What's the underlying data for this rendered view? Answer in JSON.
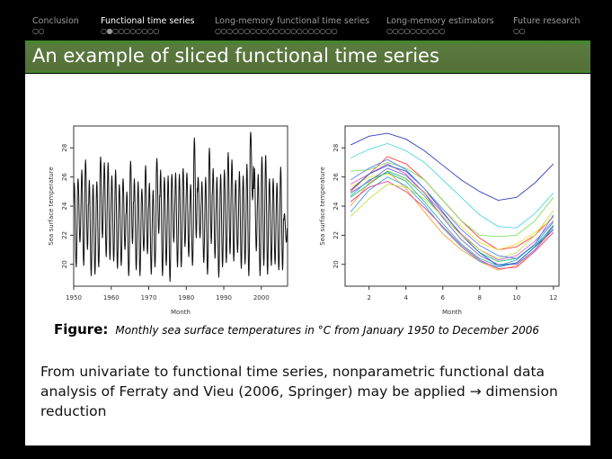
{
  "nav": {
    "sections": [
      {
        "label": "Conclusion",
        "dots": "○○",
        "active": false
      },
      {
        "label": "Functional time series",
        "dots": "○●○○○○○○○○",
        "active": true
      },
      {
        "label": "Long-memory functional time series",
        "dots": "○○○○○○○○○○○○○○○○○○○○○",
        "active": false
      },
      {
        "label": "Long-memory estimators",
        "dots": "○○○○○○○○○○",
        "active": false
      },
      {
        "label": "Future research",
        "dots": "○○",
        "active": false
      }
    ]
  },
  "title": "An example of sliced functional time series",
  "caption": {
    "label": "Figure:",
    "text": "Monthly sea surface temperatures in °C from January 1950 to December 2006"
  },
  "body": "From univariate to functional time series, nonparametric functional data analysis of Ferraty and Vieu (2006, Springer) may be applied → dimension reduction",
  "chart_data": [
    {
      "type": "line",
      "xlabel": "Month",
      "ylabel": "Sea surface temperature",
      "xlim": [
        1950,
        2007
      ],
      "ylim": [
        18.5,
        29.5
      ],
      "xticks": [
        "1950",
        "1960",
        "1970",
        "1980",
        "1990",
        "2000"
      ],
      "yticks": [
        "20",
        "22",
        "24",
        "26",
        "28"
      ],
      "years_from": 1950,
      "annual_peaks": [
        25.6,
        25.9,
        26.5,
        27.2,
        25.8,
        25.5,
        25.7,
        27.4,
        27.0,
        27.0,
        26.1,
        26.5,
        25.5,
        25.9,
        25.0,
        27.1,
        25.9,
        25.7,
        25.2,
        26.8,
        25.6,
        25.1,
        27.3,
        26.5,
        26.0,
        26.1,
        26.2,
        26.3,
        26.2,
        26.6,
        26.3,
        25.5,
        28.7,
        26.0,
        25.7,
        26.0,
        28.0,
        26.6,
        26.0,
        26.2,
        26.5,
        27.7,
        27.2,
        25.8,
        26.4,
        26.1,
        26.9,
        29.1,
        26.6,
        26.2,
        27.4,
        27.5,
        25.9,
        25.9,
        25.6,
        26.7,
        23.5
      ],
      "annual_troughs": [
        19.8,
        21.5,
        19.9,
        21.0,
        19.2,
        19.3,
        19.8,
        21.8,
        20.5,
        20.3,
        20.2,
        19.7,
        19.9,
        21.0,
        19.2,
        21.4,
        19.6,
        19.2,
        20.9,
        20.7,
        19.3,
        19.8,
        22.1,
        19.2,
        19.9,
        18.8,
        21.5,
        19.8,
        19.8,
        21.2,
        20.5,
        19.9,
        21.8,
        21.8,
        20.1,
        19.3,
        21.4,
        20.4,
        19.1,
        19.8,
        20.1,
        20.7,
        20.2,
        20.8,
        19.7,
        20.0,
        19.2,
        24.4,
        20.9,
        19.2,
        19.9,
        19.3,
        19.9,
        20.0,
        19.6,
        19.6,
        21.5
      ]
    },
    {
      "type": "line",
      "xlabel": "Month",
      "ylabel": "Sea surface temperature",
      "xlim": [
        0.7,
        12.3
      ],
      "ylim": [
        18.5,
        29.5
      ],
      "xticks": [
        "2",
        "4",
        "6",
        "8",
        "10",
        "12"
      ],
      "yticks": [
        "20",
        "22",
        "24",
        "26",
        "28"
      ],
      "months": [
        1,
        2,
        3,
        4,
        5,
        6,
        7,
        8,
        9,
        10,
        11,
        12
      ],
      "series": [
        {
          "color": "#3040c0",
          "values": [
            28.2,
            28.8,
            29.0,
            28.6,
            27.8,
            26.8,
            25.8,
            25.0,
            24.4,
            24.6,
            25.6,
            26.9
          ]
        },
        {
          "color": "#50d8e0",
          "values": [
            27.3,
            27.9,
            28.3,
            27.8,
            27.0,
            25.8,
            24.6,
            23.4,
            22.6,
            22.5,
            23.5,
            24.9
          ]
        },
        {
          "color": "#ff4040",
          "values": [
            25.0,
            26.2,
            27.4,
            26.9,
            25.8,
            24.4,
            23.0,
            21.8,
            21.0,
            21.2,
            22.0,
            23.3
          ]
        },
        {
          "color": "#ffa030",
          "values": [
            24.0,
            25.6,
            26.4,
            25.2,
            23.6,
            22.1,
            21.0,
            20.2,
            19.6,
            19.9,
            21.0,
            22.4
          ]
        },
        {
          "color": "#f0e040",
          "values": [
            25.3,
            26.0,
            26.2,
            25.8,
            25.0,
            23.8,
            22.6,
            21.5,
            21.0,
            21.4,
            22.2,
            23.2
          ]
        },
        {
          "color": "#80e060",
          "values": [
            26.4,
            26.5,
            27.0,
            26.6,
            25.8,
            24.4,
            23.0,
            22.0,
            21.9,
            22.0,
            23.0,
            24.6
          ]
        },
        {
          "color": "#30c070",
          "values": [
            24.6,
            25.5,
            26.4,
            25.9,
            24.7,
            23.3,
            22.0,
            20.8,
            20.2,
            20.4,
            21.3,
            22.6
          ]
        },
        {
          "color": "#40a0e0",
          "values": [
            23.6,
            25.1,
            26.0,
            25.4,
            24.1,
            22.5,
            21.2,
            20.2,
            19.8,
            20.1,
            21.2,
            22.7
          ]
        },
        {
          "color": "#8060e0",
          "values": [
            24.9,
            25.7,
            26.6,
            26.1,
            24.9,
            23.2,
            21.7,
            20.6,
            20.0,
            20.0,
            21.0,
            22.6
          ]
        },
        {
          "color": "#d060d0",
          "values": [
            25.5,
            26.2,
            26.9,
            26.2,
            24.9,
            23.5,
            22.1,
            21.0,
            20.3,
            20.6,
            21.6,
            23.0
          ]
        },
        {
          "color": "#e04090",
          "values": [
            24.3,
            25.3,
            25.7,
            25.0,
            23.9,
            22.6,
            21.3,
            20.3,
            19.7,
            19.8,
            20.9,
            22.2
          ]
        },
        {
          "color": "#2060c0",
          "values": [
            25.1,
            26.2,
            26.8,
            26.4,
            25.2,
            23.6,
            22.0,
            20.8,
            19.9,
            20.1,
            21.2,
            22.4
          ]
        },
        {
          "color": "#c0e040",
          "values": [
            23.3,
            24.5,
            25.5,
            25.3,
            24.5,
            23.3,
            22.0,
            21.0,
            20.4,
            20.8,
            22.0,
            23.7
          ]
        },
        {
          "color": "#30b0b0",
          "values": [
            24.7,
            25.8,
            26.3,
            25.7,
            24.3,
            22.8,
            21.4,
            20.4,
            19.9,
            20.3,
            21.4,
            22.9
          ]
        },
        {
          "color": "#6080ff",
          "values": [
            25.8,
            26.6,
            27.2,
            26.5,
            25.2,
            23.8,
            22.4,
            21.3,
            20.6,
            20.4,
            21.4,
            23.4
          ]
        }
      ]
    }
  ]
}
